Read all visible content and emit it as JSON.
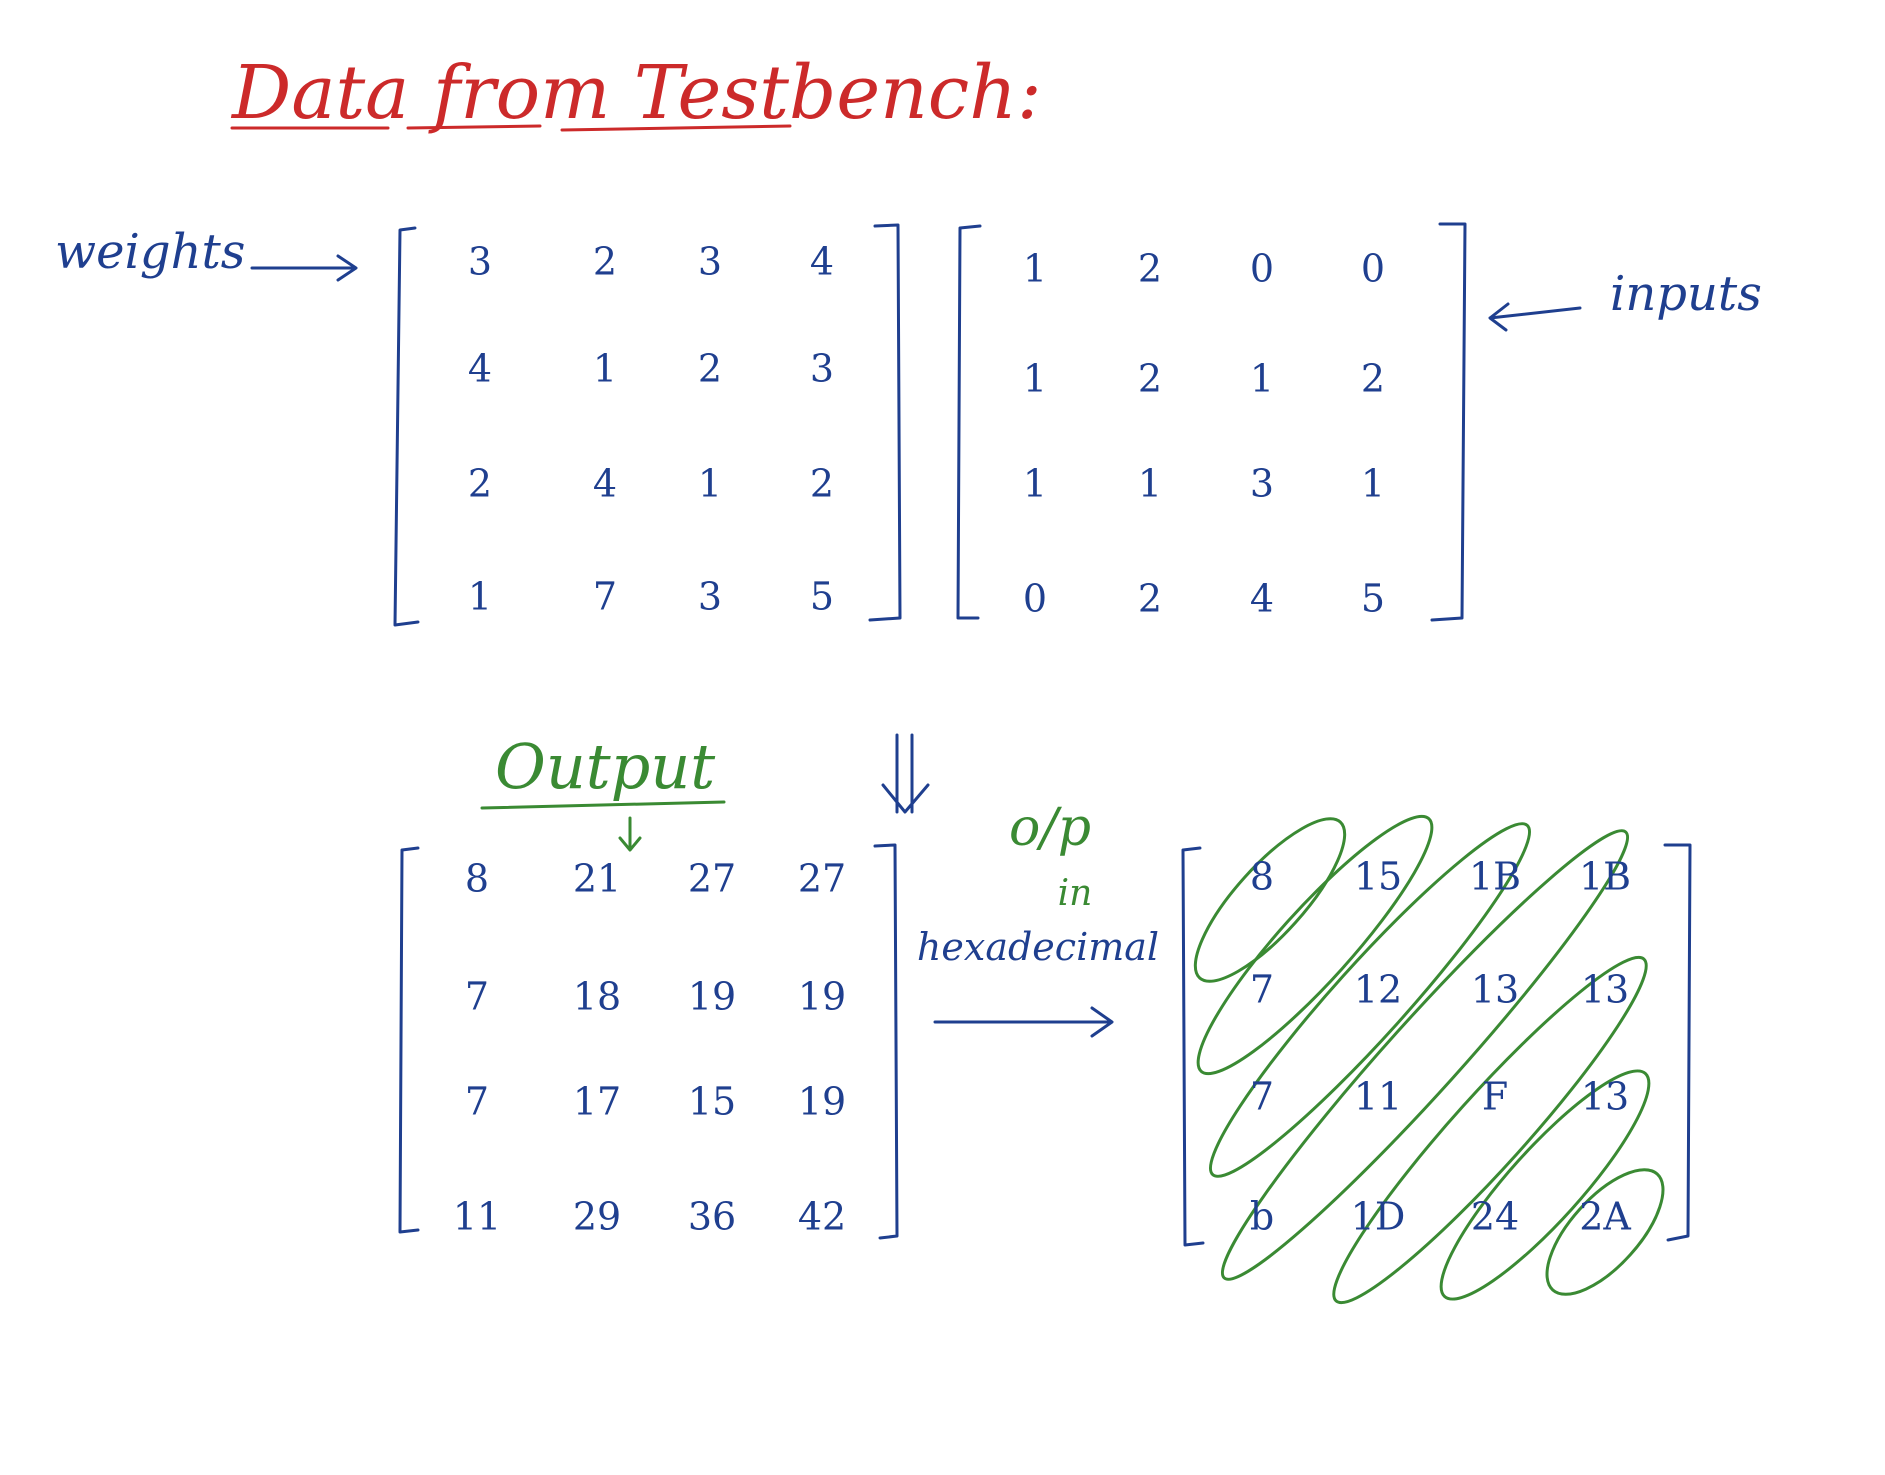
{
  "title": "Data from Testbench:",
  "weights": {
    "label": "weights",
    "rows": [
      [
        "3",
        "2",
        "3",
        "4"
      ],
      [
        "4",
        "1",
        "2",
        "3"
      ],
      [
        "2",
        "4",
        "1",
        "2"
      ],
      [
        "1",
        "7",
        "3",
        "5"
      ]
    ]
  },
  "inputs": {
    "label": "inputs",
    "rows": [
      [
        "1",
        "2",
        "0",
        "0"
      ],
      [
        "1",
        "2",
        "1",
        "2"
      ],
      [
        "1",
        "1",
        "3",
        "1"
      ],
      [
        "0",
        "2",
        "4",
        "5"
      ]
    ]
  },
  "output": {
    "label": "Output",
    "rows": [
      [
        "8",
        "21",
        "27",
        "27"
      ],
      [
        "7",
        "18",
        "19",
        "19"
      ],
      [
        "7",
        "17",
        "15",
        "19"
      ],
      [
        "11",
        "29",
        "36",
        "42"
      ]
    ]
  },
  "hex_output": {
    "label_line1": "o/p",
    "label_line2": "in",
    "label_line3": "hexadecimal",
    "rows": [
      [
        "8",
        "15",
        "1B",
        "1B"
      ],
      [
        "7",
        "12",
        "13",
        "13"
      ],
      [
        "7",
        "11",
        "F",
        "13"
      ],
      [
        "b",
        "1D",
        "24",
        "2A"
      ]
    ]
  },
  "colors": {
    "ink_blue": "#1f3f8f",
    "ink_red": "#cc2a2a",
    "ink_green": "#3a8a33"
  }
}
